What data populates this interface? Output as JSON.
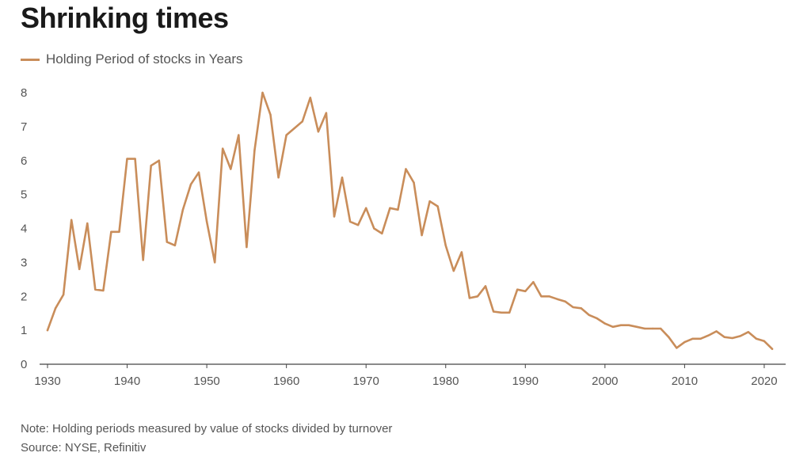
{
  "title": "Shrinking times",
  "note": "Note: Holding periods measured by value of stocks divided by turnover",
  "source": "Source: NYSE, Refinitiv",
  "colors": {
    "series": "#c98d5a",
    "axis": "#444444",
    "text": "#555555"
  },
  "chart_data": {
    "type": "line",
    "title": "Shrinking times",
    "xlabel": "",
    "ylabel": "",
    "xlim": [
      1930,
      2021
    ],
    "ylim": [
      0,
      8
    ],
    "yticks": [
      0,
      1,
      2,
      3,
      4,
      5,
      6,
      7,
      8
    ],
    "xticks": [
      1930,
      1940,
      1950,
      1960,
      1970,
      1980,
      1990,
      2000,
      2010,
      2020
    ],
    "grid": false,
    "legend_position": "top-left",
    "series": [
      {
        "name": "Holding Period of stocks in Years",
        "x": [
          1930,
          1931,
          1932,
          1933,
          1934,
          1935,
          1936,
          1937,
          1938,
          1939,
          1940,
          1941,
          1942,
          1943,
          1944,
          1945,
          1946,
          1947,
          1948,
          1949,
          1950,
          1951,
          1952,
          1953,
          1954,
          1955,
          1956,
          1957,
          1958,
          1959,
          1960,
          1961,
          1962,
          1963,
          1964,
          1965,
          1966,
          1967,
          1968,
          1969,
          1970,
          1971,
          1972,
          1973,
          1974,
          1975,
          1976,
          1977,
          1978,
          1979,
          1980,
          1981,
          1982,
          1983,
          1984,
          1985,
          1986,
          1987,
          1988,
          1989,
          1990,
          1991,
          1992,
          1993,
          1994,
          1995,
          1996,
          1997,
          1998,
          1999,
          2000,
          2001,
          2002,
          2003,
          2004,
          2005,
          2006,
          2007,
          2008,
          2009,
          2010,
          2011,
          2012,
          2013,
          2014,
          2015,
          2016,
          2017,
          2018,
          2019,
          2020,
          2021
        ],
        "y": [
          1.0,
          1.65,
          2.05,
          4.25,
          2.8,
          4.15,
          2.2,
          2.17,
          3.9,
          3.9,
          6.05,
          6.05,
          3.07,
          5.85,
          6.0,
          3.6,
          3.5,
          4.55,
          5.3,
          5.65,
          4.2,
          3.0,
          6.35,
          5.75,
          6.75,
          3.45,
          6.3,
          8.0,
          7.35,
          5.5,
          6.75,
          6.95,
          7.15,
          7.85,
          6.85,
          7.4,
          4.35,
          5.5,
          4.2,
          4.1,
          4.6,
          4.0,
          3.85,
          4.6,
          4.55,
          5.75,
          5.35,
          3.8,
          4.8,
          4.65,
          3.5,
          2.75,
          3.3,
          1.95,
          2.0,
          2.3,
          1.55,
          1.52,
          1.52,
          2.2,
          2.15,
          2.42,
          2.0,
          2.0,
          1.92,
          1.85,
          1.68,
          1.65,
          1.45,
          1.35,
          1.2,
          1.1,
          1.15,
          1.15,
          1.1,
          1.05,
          1.05,
          1.05,
          0.8,
          0.48,
          0.65,
          0.75,
          0.75,
          0.85,
          0.97,
          0.8,
          0.77,
          0.83,
          0.95,
          0.75,
          0.68,
          0.45
        ]
      }
    ]
  }
}
